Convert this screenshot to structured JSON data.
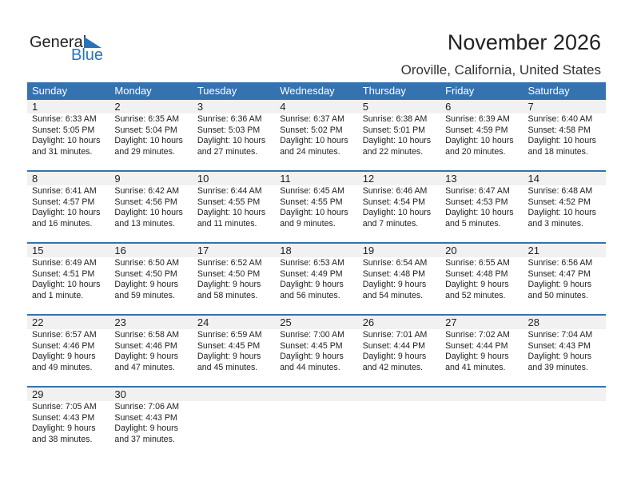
{
  "logo": {
    "line1": "General",
    "line2": "Blue"
  },
  "title": "November 2026",
  "location": "Oroville, California, United States",
  "accent": "#3572b0",
  "weekdays": [
    "Sunday",
    "Monday",
    "Tuesday",
    "Wednesday",
    "Thursday",
    "Friday",
    "Saturday"
  ],
  "weeks": [
    [
      {
        "day": "1",
        "sunrise": "Sunrise: 6:33 AM",
        "sunset": "Sunset: 5:05 PM",
        "daylight": "Daylight: 10 hours",
        "minutes": "and 31 minutes."
      },
      {
        "day": "2",
        "sunrise": "Sunrise: 6:35 AM",
        "sunset": "Sunset: 5:04 PM",
        "daylight": "Daylight: 10 hours",
        "minutes": "and 29 minutes."
      },
      {
        "day": "3",
        "sunrise": "Sunrise: 6:36 AM",
        "sunset": "Sunset: 5:03 PM",
        "daylight": "Daylight: 10 hours",
        "minutes": "and 27 minutes."
      },
      {
        "day": "4",
        "sunrise": "Sunrise: 6:37 AM",
        "sunset": "Sunset: 5:02 PM",
        "daylight": "Daylight: 10 hours",
        "minutes": "and 24 minutes."
      },
      {
        "day": "5",
        "sunrise": "Sunrise: 6:38 AM",
        "sunset": "Sunset: 5:01 PM",
        "daylight": "Daylight: 10 hours",
        "minutes": "and 22 minutes."
      },
      {
        "day": "6",
        "sunrise": "Sunrise: 6:39 AM",
        "sunset": "Sunset: 4:59 PM",
        "daylight": "Daylight: 10 hours",
        "minutes": "and 20 minutes."
      },
      {
        "day": "7",
        "sunrise": "Sunrise: 6:40 AM",
        "sunset": "Sunset: 4:58 PM",
        "daylight": "Daylight: 10 hours",
        "minutes": "and 18 minutes."
      }
    ],
    [
      {
        "day": "8",
        "sunrise": "Sunrise: 6:41 AM",
        "sunset": "Sunset: 4:57 PM",
        "daylight": "Daylight: 10 hours",
        "minutes": "and 16 minutes."
      },
      {
        "day": "9",
        "sunrise": "Sunrise: 6:42 AM",
        "sunset": "Sunset: 4:56 PM",
        "daylight": "Daylight: 10 hours",
        "minutes": "and 13 minutes."
      },
      {
        "day": "10",
        "sunrise": "Sunrise: 6:44 AM",
        "sunset": "Sunset: 4:55 PM",
        "daylight": "Daylight: 10 hours",
        "minutes": "and 11 minutes."
      },
      {
        "day": "11",
        "sunrise": "Sunrise: 6:45 AM",
        "sunset": "Sunset: 4:55 PM",
        "daylight": "Daylight: 10 hours",
        "minutes": "and 9 minutes."
      },
      {
        "day": "12",
        "sunrise": "Sunrise: 6:46 AM",
        "sunset": "Sunset: 4:54 PM",
        "daylight": "Daylight: 10 hours",
        "minutes": "and 7 minutes."
      },
      {
        "day": "13",
        "sunrise": "Sunrise: 6:47 AM",
        "sunset": "Sunset: 4:53 PM",
        "daylight": "Daylight: 10 hours",
        "minutes": "and 5 minutes."
      },
      {
        "day": "14",
        "sunrise": "Sunrise: 6:48 AM",
        "sunset": "Sunset: 4:52 PM",
        "daylight": "Daylight: 10 hours",
        "minutes": "and 3 minutes."
      }
    ],
    [
      {
        "day": "15",
        "sunrise": "Sunrise: 6:49 AM",
        "sunset": "Sunset: 4:51 PM",
        "daylight": "Daylight: 10 hours",
        "minutes": "and 1 minute."
      },
      {
        "day": "16",
        "sunrise": "Sunrise: 6:50 AM",
        "sunset": "Sunset: 4:50 PM",
        "daylight": "Daylight: 9 hours",
        "minutes": "and 59 minutes."
      },
      {
        "day": "17",
        "sunrise": "Sunrise: 6:52 AM",
        "sunset": "Sunset: 4:50 PM",
        "daylight": "Daylight: 9 hours",
        "minutes": "and 58 minutes."
      },
      {
        "day": "18",
        "sunrise": "Sunrise: 6:53 AM",
        "sunset": "Sunset: 4:49 PM",
        "daylight": "Daylight: 9 hours",
        "minutes": "and 56 minutes."
      },
      {
        "day": "19",
        "sunrise": "Sunrise: 6:54 AM",
        "sunset": "Sunset: 4:48 PM",
        "daylight": "Daylight: 9 hours",
        "minutes": "and 54 minutes."
      },
      {
        "day": "20",
        "sunrise": "Sunrise: 6:55 AM",
        "sunset": "Sunset: 4:48 PM",
        "daylight": "Daylight: 9 hours",
        "minutes": "and 52 minutes."
      },
      {
        "day": "21",
        "sunrise": "Sunrise: 6:56 AM",
        "sunset": "Sunset: 4:47 PM",
        "daylight": "Daylight: 9 hours",
        "minutes": "and 50 minutes."
      }
    ],
    [
      {
        "day": "22",
        "sunrise": "Sunrise: 6:57 AM",
        "sunset": "Sunset: 4:46 PM",
        "daylight": "Daylight: 9 hours",
        "minutes": "and 49 minutes."
      },
      {
        "day": "23",
        "sunrise": "Sunrise: 6:58 AM",
        "sunset": "Sunset: 4:46 PM",
        "daylight": "Daylight: 9 hours",
        "minutes": "and 47 minutes."
      },
      {
        "day": "24",
        "sunrise": "Sunrise: 6:59 AM",
        "sunset": "Sunset: 4:45 PM",
        "daylight": "Daylight: 9 hours",
        "minutes": "and 45 minutes."
      },
      {
        "day": "25",
        "sunrise": "Sunrise: 7:00 AM",
        "sunset": "Sunset: 4:45 PM",
        "daylight": "Daylight: 9 hours",
        "minutes": "and 44 minutes."
      },
      {
        "day": "26",
        "sunrise": "Sunrise: 7:01 AM",
        "sunset": "Sunset: 4:44 PM",
        "daylight": "Daylight: 9 hours",
        "minutes": "and 42 minutes."
      },
      {
        "day": "27",
        "sunrise": "Sunrise: 7:02 AM",
        "sunset": "Sunset: 4:44 PM",
        "daylight": "Daylight: 9 hours",
        "minutes": "and 41 minutes."
      },
      {
        "day": "28",
        "sunrise": "Sunrise: 7:04 AM",
        "sunset": "Sunset: 4:43 PM",
        "daylight": "Daylight: 9 hours",
        "minutes": "and 39 minutes."
      }
    ],
    [
      {
        "day": "29",
        "sunrise": "Sunrise: 7:05 AM",
        "sunset": "Sunset: 4:43 PM",
        "daylight": "Daylight: 9 hours",
        "minutes": "and 38 minutes."
      },
      {
        "day": "30",
        "sunrise": "Sunrise: 7:06 AM",
        "sunset": "Sunset: 4:43 PM",
        "daylight": "Daylight: 9 hours",
        "minutes": "and 37 minutes."
      },
      null,
      null,
      null,
      null,
      null
    ]
  ]
}
